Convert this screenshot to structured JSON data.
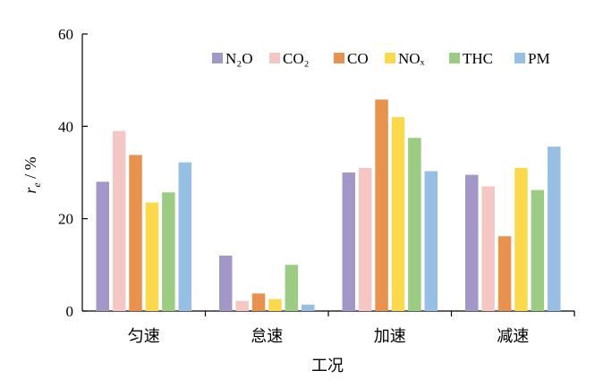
{
  "chart_data": {
    "type": "bar",
    "categories": [
      "匀速",
      "怠速",
      "加速",
      "减速"
    ],
    "series": [
      {
        "name": "N₂O",
        "color": "#a397c8",
        "values": [
          28.0,
          12.0,
          30.0,
          29.5
        ]
      },
      {
        "name": "CO₂",
        "color": "#f4c7c5",
        "values": [
          39.0,
          2.2,
          31.0,
          27.0
        ]
      },
      {
        "name": "CO",
        "color": "#e8924f",
        "values": [
          33.8,
          3.8,
          45.8,
          16.2
        ]
      },
      {
        "name": "NOₓ",
        "color": "#fbd84c",
        "values": [
          23.5,
          2.6,
          42.0,
          31.0
        ]
      },
      {
        "name": "THC",
        "color": "#9ccb84",
        "values": [
          25.7,
          10.0,
          37.5,
          26.2
        ]
      },
      {
        "name": "PM",
        "color": "#97bfe3",
        "values": [
          32.2,
          1.4,
          30.3,
          35.6
        ]
      }
    ],
    "xlabel": "工况",
    "ylabel_main": "r",
    "ylabel_sub": "e",
    "ylabel_unit": " / %",
    "ylim": [
      0,
      60
    ],
    "yticks": [
      0,
      20,
      40,
      60
    ],
    "grid": false,
    "legend_position": "top-right"
  }
}
